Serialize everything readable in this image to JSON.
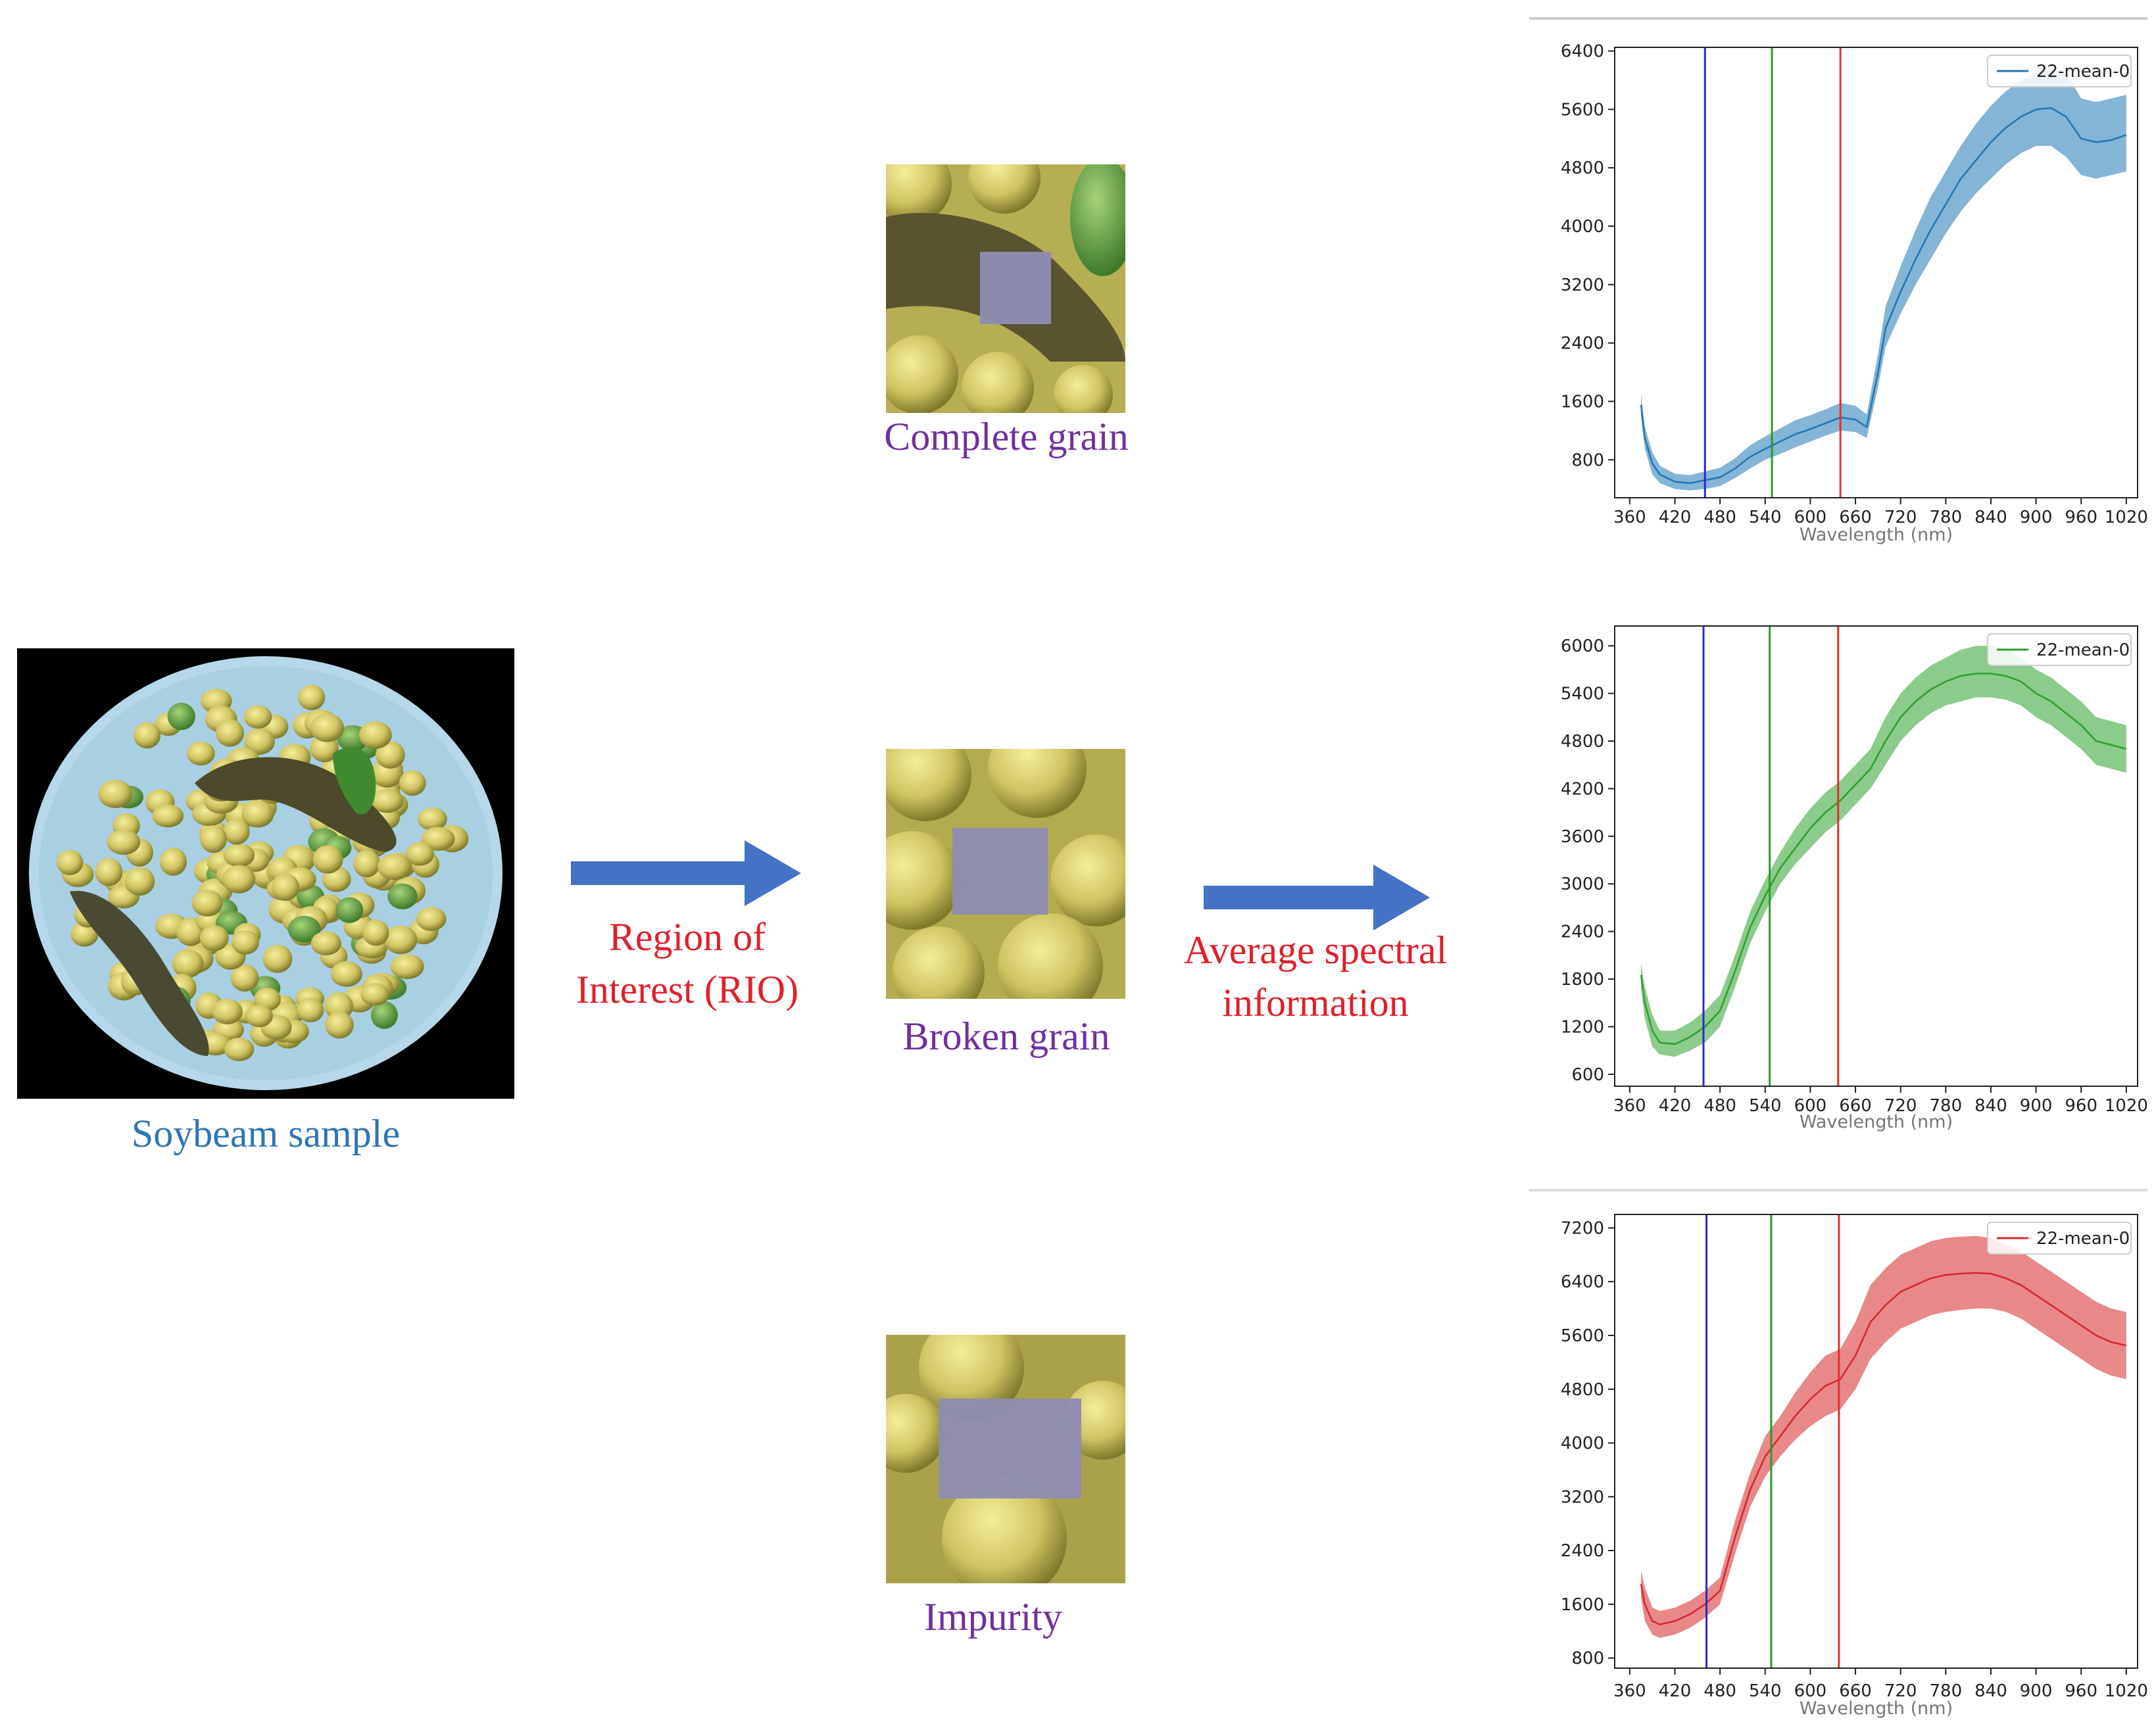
{
  "labels": {
    "sample": "Soybeam  sample",
    "roi_line1": "Region  of",
    "roi_line2": "Interest (RIO)",
    "avg_line1": "Average  spectral",
    "avg_line2": "information",
    "complete": "Complete  grain",
    "broken": "Broken grain",
    "impurity": "Impurity"
  },
  "colors": {
    "arrow": "#4472c4",
    "purple_text": "#7030a0",
    "sample_text": "#2e75b6",
    "red_text": "#e0202a",
    "vline_blue": "#2a2ad0",
    "vline_green": "#2a9a2a",
    "vline_red": "#e03030"
  },
  "chart_data": [
    {
      "type": "line",
      "name": "complete-grain-spectrum",
      "color": "#1f77b4",
      "fill": "#1f77b4",
      "legend": "22-mean-0",
      "legend_position": "top-right",
      "xlabel": "Wavelength (nm)",
      "xticks": [
        360,
        420,
        480,
        540,
        600,
        660,
        720,
        780,
        840,
        900,
        960,
        1020
      ],
      "xlim": [
        340,
        1035
      ],
      "ylim": [
        280,
        6450
      ],
      "yticks": [
        800,
        1600,
        2400,
        3200,
        4000,
        4800,
        5600,
        6400
      ],
      "vlines": [
        460,
        549,
        640
      ],
      "x": [
        375,
        380,
        390,
        400,
        420,
        440,
        460,
        480,
        500,
        520,
        540,
        560,
        580,
        600,
        620,
        640,
        660,
        675,
        690,
        700,
        720,
        740,
        760,
        780,
        800,
        820,
        840,
        860,
        880,
        900,
        920,
        940,
        960,
        980,
        1000,
        1020
      ],
      "mean": [
        1550,
        1100,
        750,
        600,
        500,
        480,
        520,
        560,
        680,
        840,
        950,
        1050,
        1150,
        1220,
        1300,
        1380,
        1350,
        1250,
        2000,
        2600,
        3100,
        3550,
        3950,
        4300,
        4650,
        4900,
        5150,
        5350,
        5500,
        5600,
        5620,
        5500,
        5200,
        5150,
        5180,
        5250
      ],
      "lower": [
        1400,
        950,
        600,
        480,
        400,
        380,
        400,
        440,
        550,
        680,
        800,
        880,
        970,
        1050,
        1130,
        1200,
        1180,
        1100,
        1800,
        2350,
        2800,
        3200,
        3550,
        3900,
        4200,
        4450,
        4650,
        4850,
        5000,
        5100,
        5100,
        4950,
        4700,
        4650,
        4700,
        4750
      ],
      "upper": [
        1700,
        1250,
        900,
        720,
        610,
        590,
        640,
        690,
        820,
        1000,
        1120,
        1230,
        1340,
        1410,
        1490,
        1580,
        1540,
        1420,
        2250,
        2900,
        3450,
        3950,
        4400,
        4750,
        5100,
        5400,
        5650,
        5850,
        6000,
        6100,
        6150,
        6100,
        5750,
        5700,
        5750,
        5800
      ]
    },
    {
      "type": "line",
      "name": "broken-grain-spectrum",
      "color": "#2ca02c",
      "fill": "#2ca02c",
      "legend": "22-mean-0",
      "legend_position": "top-right",
      "xlabel": "Wavelength (nm)",
      "xticks": [
        360,
        420,
        480,
        540,
        600,
        660,
        720,
        780,
        840,
        900,
        960,
        1020
      ],
      "xlim": [
        340,
        1035
      ],
      "ylim": [
        450,
        6250
      ],
      "yticks": [
        600,
        1200,
        1800,
        2400,
        3000,
        3600,
        4200,
        4800,
        5400,
        6000
      ],
      "vlines": [
        458,
        546,
        637
      ],
      "x": [
        375,
        380,
        390,
        400,
        420,
        440,
        460,
        480,
        500,
        520,
        540,
        560,
        580,
        600,
        620,
        640,
        660,
        680,
        700,
        720,
        740,
        760,
        780,
        800,
        820,
        840,
        860,
        880,
        900,
        920,
        940,
        960,
        980,
        1000,
        1020
      ],
      "mean": [
        1850,
        1500,
        1150,
        1000,
        980,
        1070,
        1200,
        1400,
        1900,
        2450,
        2850,
        3200,
        3450,
        3700,
        3900,
        4050,
        4250,
        4450,
        4800,
        5100,
        5300,
        5450,
        5550,
        5620,
        5650,
        5650,
        5620,
        5550,
        5400,
        5300,
        5150,
        5000,
        4800,
        4750,
        4700
      ],
      "lower": [
        1700,
        1300,
        950,
        850,
        820,
        900,
        1000,
        1200,
        1700,
        2250,
        2650,
        3000,
        3250,
        3450,
        3650,
        3800,
        4000,
        4200,
        4500,
        4800,
        5000,
        5150,
        5250,
        5300,
        5350,
        5350,
        5320,
        5250,
        5100,
        5000,
        4850,
        4700,
        4500,
        4450,
        4400
      ],
      "upper": [
        2000,
        1700,
        1350,
        1150,
        1150,
        1250,
        1400,
        1600,
        2100,
        2650,
        3050,
        3400,
        3700,
        3950,
        4150,
        4300,
        4500,
        4700,
        5100,
        5400,
        5600,
        5750,
        5850,
        5950,
        6000,
        6000,
        5950,
        5850,
        5700,
        5600,
        5450,
        5300,
        5100,
        5050,
        5000
      ]
    },
    {
      "type": "line",
      "name": "impurity-spectrum",
      "color": "#d62728",
      "fill": "#d62728",
      "legend": "22-mean-0",
      "legend_position": "top-right",
      "xlabel": "Wavelength (nm)",
      "xticks": [
        360,
        420,
        480,
        540,
        600,
        660,
        720,
        780,
        840,
        900,
        960,
        1020
      ],
      "xlim": [
        340,
        1035
      ],
      "ylim": [
        650,
        7400
      ],
      "yticks": [
        800,
        1600,
        2400,
        3200,
        4000,
        4800,
        5600,
        6400,
        7200
      ],
      "vlines": [
        462,
        548,
        638
      ],
      "x": [
        375,
        380,
        390,
        400,
        420,
        440,
        460,
        480,
        500,
        520,
        540,
        560,
        580,
        600,
        620,
        640,
        660,
        680,
        700,
        720,
        740,
        760,
        780,
        800,
        820,
        840,
        860,
        880,
        900,
        920,
        940,
        960,
        980,
        1000,
        1020
      ],
      "mean": [
        1900,
        1600,
        1350,
        1300,
        1350,
        1450,
        1600,
        1800,
        2600,
        3300,
        3800,
        4100,
        4400,
        4650,
        4850,
        4950,
        5300,
        5800,
        6050,
        6250,
        6350,
        6450,
        6500,
        6520,
        6530,
        6520,
        6450,
        6350,
        6200,
        6050,
        5900,
        5750,
        5600,
        5500,
        5450
      ],
      "lower": [
        1700,
        1350,
        1150,
        1100,
        1150,
        1250,
        1400,
        1600,
        2350,
        3050,
        3500,
        3800,
        4050,
        4250,
        4400,
        4500,
        4800,
        5250,
        5500,
        5700,
        5800,
        5900,
        5950,
        5980,
        6000,
        6000,
        5950,
        5850,
        5700,
        5550,
        5400,
        5250,
        5100,
        5000,
        4950
      ],
      "upper": [
        2100,
        1850,
        1550,
        1500,
        1550,
        1650,
        1800,
        2000,
        2850,
        3550,
        4100,
        4400,
        4750,
        5050,
        5300,
        5400,
        5800,
        6350,
        6600,
        6800,
        6900,
        7000,
        7050,
        7070,
        7080,
        7050,
        6950,
        6850,
        6700,
        6550,
        6400,
        6250,
        6100,
        6000,
        5950
      ]
    }
  ]
}
